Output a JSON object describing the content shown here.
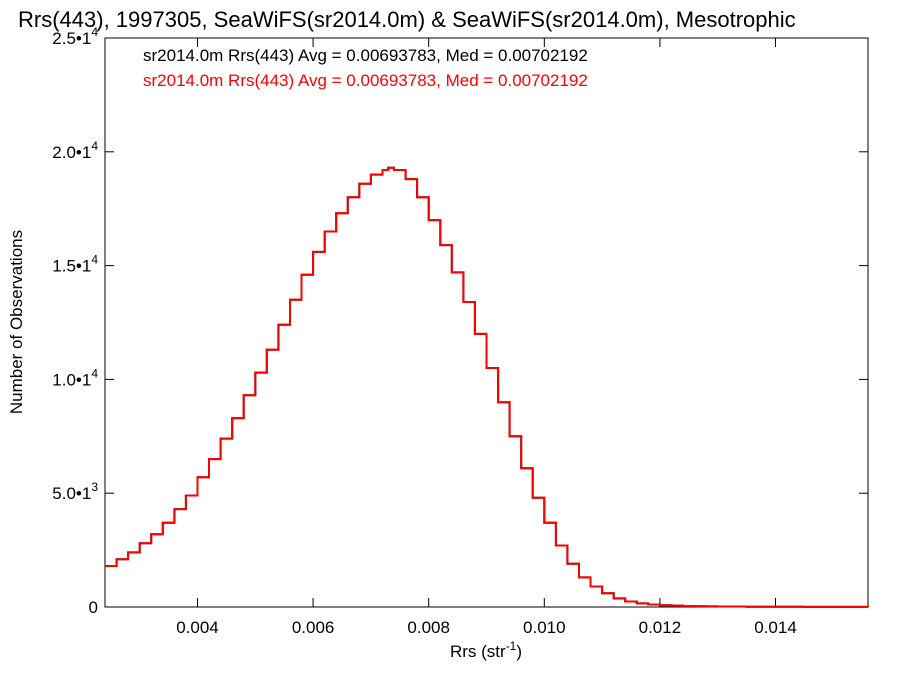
{
  "chart_data": {
    "type": "line",
    "title": "Rrs(443), 1997305, SeaWiFS(sr2014.0m) & SeaWiFS(sr2014.0m), Mesotrophic",
    "xlabel_base": "Rrs (str",
    "xlabel_sup": "-1",
    "xlabel_close": ")",
    "ylabel": "Number of Observations",
    "xlim": [
      0.0024,
      0.0156
    ],
    "ylim": [
      0,
      25000
    ],
    "grid": false,
    "legend_position": "top-left",
    "x_ticks": [
      {
        "value": 0.004,
        "label": "0.004"
      },
      {
        "value": 0.006,
        "label": "0.006"
      },
      {
        "value": 0.008,
        "label": "0.008"
      },
      {
        "value": 0.01,
        "label": "0.010"
      },
      {
        "value": 0.012,
        "label": "0.012"
      },
      {
        "value": 0.014,
        "label": "0.014"
      }
    ],
    "y_ticks": [
      {
        "value": 0,
        "mantissa": "0",
        "exponent": ""
      },
      {
        "value": 5000,
        "mantissa": "5.0•1",
        "exponent": "3"
      },
      {
        "value": 10000,
        "mantissa": "1.0•1",
        "exponent": "4"
      },
      {
        "value": 15000,
        "mantissa": "1.5•1",
        "exponent": "4"
      },
      {
        "value": 20000,
        "mantissa": "2.0•1",
        "exponent": "4"
      },
      {
        "value": 25000,
        "mantissa": "2.5•1",
        "exponent": "4"
      }
    ],
    "series": [
      {
        "name": "sr2014.0m Rrs(443) Avg = 0.00693783, Med = 0.00702192",
        "color": "#000000",
        "x": [
          0.0024,
          0.0026,
          0.0028,
          0.003,
          0.0032,
          0.0034,
          0.0036,
          0.0038,
          0.004,
          0.0042,
          0.0044,
          0.0046,
          0.0048,
          0.005,
          0.0052,
          0.0054,
          0.0056,
          0.0058,
          0.006,
          0.0062,
          0.0064,
          0.0066,
          0.0068,
          0.007,
          0.0072,
          0.0073,
          0.0074,
          0.0076,
          0.0078,
          0.008,
          0.0082,
          0.0084,
          0.0086,
          0.0088,
          0.009,
          0.0092,
          0.0094,
          0.0096,
          0.0098,
          0.01,
          0.0102,
          0.0104,
          0.0106,
          0.0108,
          0.011,
          0.0112,
          0.0114,
          0.0116,
          0.0118,
          0.012,
          0.0122,
          0.0124,
          0.0126,
          0.0128,
          0.013,
          0.0135,
          0.014,
          0.0145,
          0.015,
          0.0156
        ],
        "y": [
          1800,
          2100,
          2400,
          2800,
          3200,
          3700,
          4300,
          4900,
          5700,
          6500,
          7400,
          8300,
          9300,
          10300,
          11300,
          12400,
          13500,
          14600,
          15600,
          16500,
          17300,
          18000,
          18600,
          19000,
          19200,
          19300,
          19200,
          18800,
          18000,
          17000,
          15900,
          14700,
          13400,
          12000,
          10500,
          9000,
          7500,
          6100,
          4800,
          3700,
          2700,
          1900,
          1300,
          900,
          600,
          380,
          240,
          160,
          110,
          80,
          60,
          45,
          35,
          28,
          22,
          14,
          9,
          6,
          4,
          2
        ]
      },
      {
        "name": "sr2014.0m Rrs(443) Avg = 0.00693783, Med = 0.00702192",
        "color": "#ff0000",
        "x": [
          0.0024,
          0.0026,
          0.0028,
          0.003,
          0.0032,
          0.0034,
          0.0036,
          0.0038,
          0.004,
          0.0042,
          0.0044,
          0.0046,
          0.0048,
          0.005,
          0.0052,
          0.0054,
          0.0056,
          0.0058,
          0.006,
          0.0062,
          0.0064,
          0.0066,
          0.0068,
          0.007,
          0.0072,
          0.0073,
          0.0074,
          0.0076,
          0.0078,
          0.008,
          0.0082,
          0.0084,
          0.0086,
          0.0088,
          0.009,
          0.0092,
          0.0094,
          0.0096,
          0.0098,
          0.01,
          0.0102,
          0.0104,
          0.0106,
          0.0108,
          0.011,
          0.0112,
          0.0114,
          0.0116,
          0.0118,
          0.012,
          0.0122,
          0.0124,
          0.0126,
          0.0128,
          0.013,
          0.0135,
          0.014,
          0.0145,
          0.015,
          0.0156
        ],
        "y": [
          1800,
          2100,
          2400,
          2800,
          3200,
          3700,
          4300,
          4900,
          5700,
          6500,
          7400,
          8300,
          9300,
          10300,
          11300,
          12400,
          13500,
          14600,
          15600,
          16500,
          17300,
          18000,
          18600,
          19000,
          19200,
          19300,
          19200,
          18800,
          18000,
          17000,
          15900,
          14700,
          13400,
          12000,
          10500,
          9000,
          7500,
          6100,
          4800,
          3700,
          2700,
          1900,
          1300,
          900,
          600,
          380,
          240,
          160,
          110,
          80,
          60,
          45,
          35,
          28,
          22,
          14,
          9,
          6,
          4,
          2
        ]
      }
    ]
  }
}
